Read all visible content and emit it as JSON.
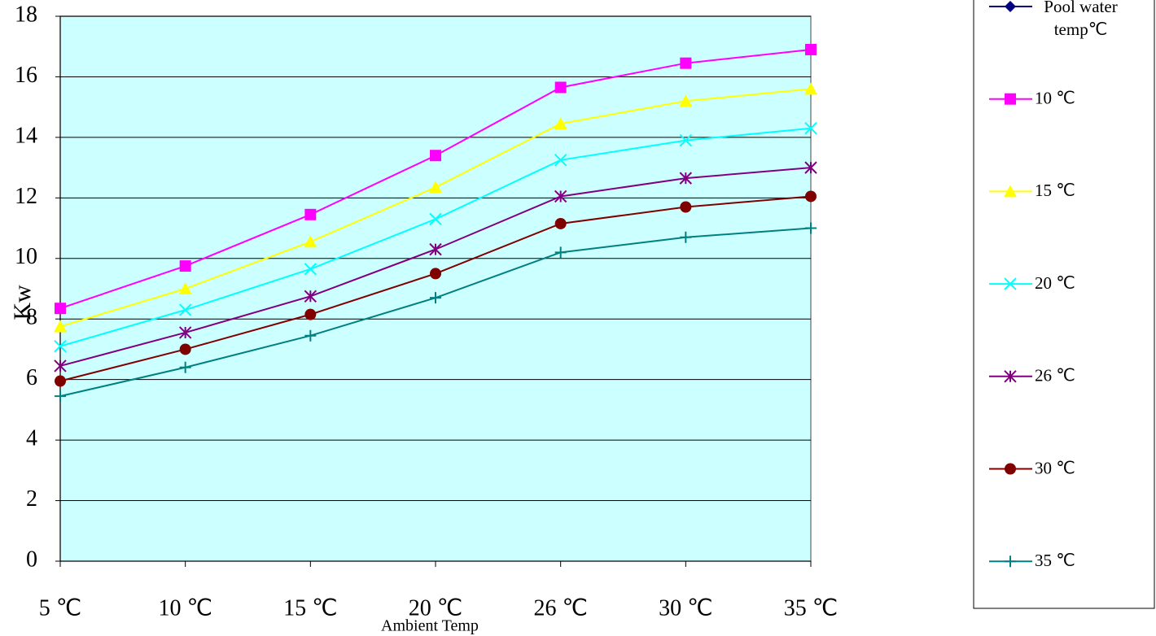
{
  "chart_data": {
    "type": "line",
    "x_label": "Ambient Temp",
    "y_label": "Kw",
    "categories": [
      "5 ℃",
      "10 ℃",
      "15 ℃",
      "20 ℃",
      "26 ℃",
      "30 ℃",
      "35 ℃"
    ],
    "ylim": [
      0,
      18
    ],
    "yticks": [
      0,
      2,
      4,
      6,
      8,
      10,
      12,
      14,
      16,
      18
    ],
    "grid": true,
    "background": "#ccffff",
    "legend": "right",
    "series": [
      {
        "name": "Pool water temp℃",
        "color": "#000080",
        "marker": "diamond",
        "values": [
          null,
          null,
          null,
          null,
          null,
          null,
          null
        ]
      },
      {
        "name": "10 ℃",
        "color": "#ff00ff",
        "marker": "square",
        "values": [
          8.35,
          9.75,
          11.45,
          13.4,
          15.65,
          16.45,
          16.9
        ]
      },
      {
        "name": "15 ℃",
        "color": "#ffff00",
        "marker": "triangle",
        "values": [
          7.75,
          9.0,
          10.55,
          12.35,
          14.45,
          15.2,
          15.6
        ]
      },
      {
        "name": "20 ℃",
        "color": "#00ffff",
        "marker": "x",
        "values": [
          7.1,
          8.3,
          9.65,
          11.3,
          13.25,
          13.9,
          14.3
        ]
      },
      {
        "name": "26 ℃",
        "color": "#800080",
        "marker": "asterisk",
        "values": [
          6.45,
          7.55,
          8.75,
          10.3,
          12.05,
          12.65,
          13.0
        ]
      },
      {
        "name": "30 ℃",
        "color": "#800000",
        "marker": "circle",
        "values": [
          5.95,
          7.0,
          8.15,
          9.5,
          11.15,
          11.7,
          12.05
        ]
      },
      {
        "name": "35 ℃",
        "color": "#008080",
        "marker": "plus",
        "values": [
          5.45,
          6.4,
          7.45,
          8.7,
          10.2,
          10.7,
          11.0
        ]
      }
    ]
  }
}
